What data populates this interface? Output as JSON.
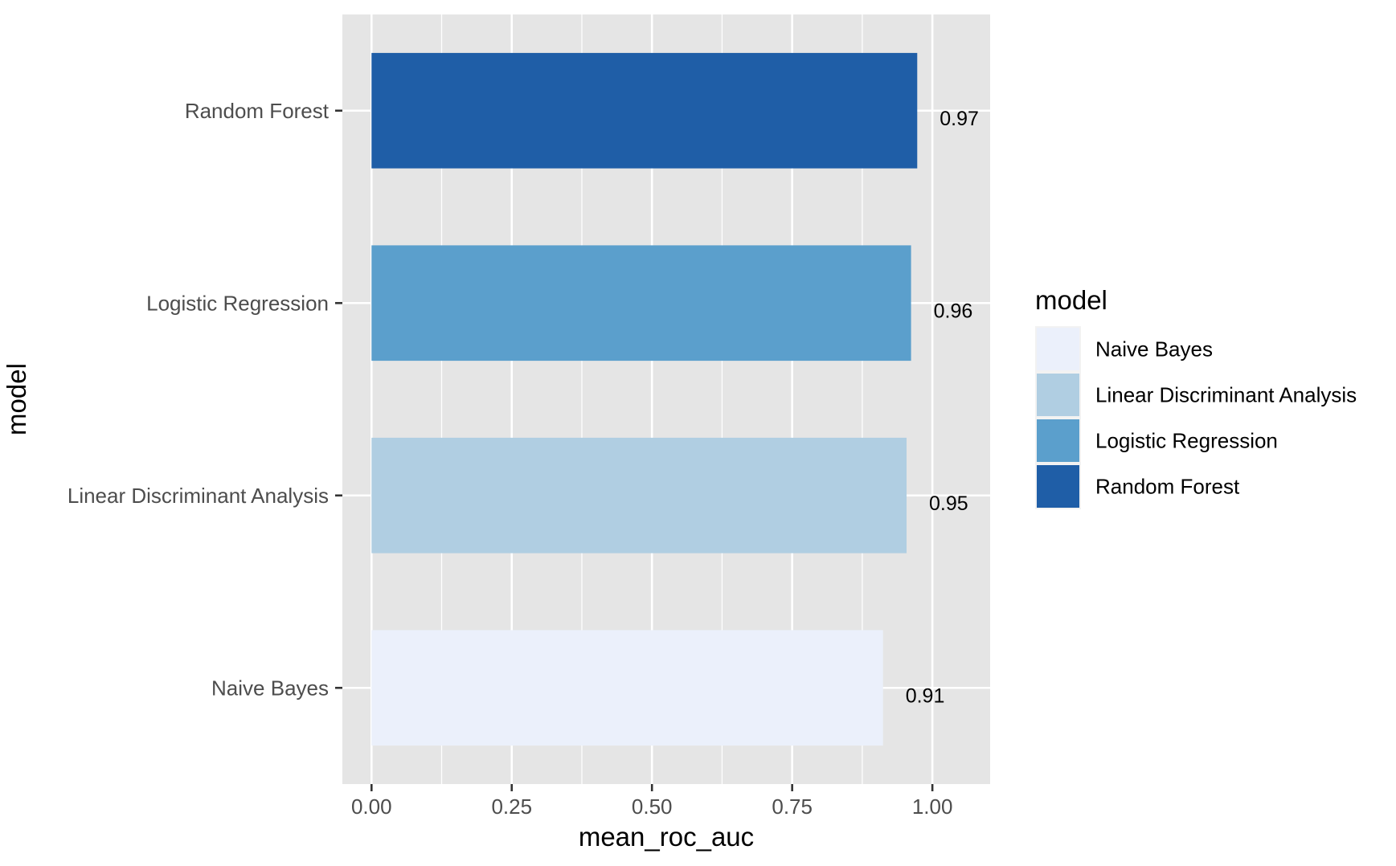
{
  "chart_data": {
    "type": "bar",
    "orientation": "horizontal",
    "categories": [
      "Naive Bayes",
      "Linear Discriminant Analysis",
      "Logistic Regression",
      "Random Forest"
    ],
    "values": [
      0.912,
      0.954,
      0.962,
      0.973
    ],
    "value_labels": [
      "0.91",
      "0.95",
      "0.96",
      "0.97"
    ],
    "colors": [
      "#EBF0FB",
      "#B0CEE2",
      "#5B9FCC",
      "#1F5EA7"
    ],
    "xlabel": "mean_roc_auc",
    "ylabel": "model",
    "xlim": [
      -0.052,
      1.103
    ],
    "x_ticks": [
      0,
      0.25,
      0.5,
      0.75,
      1
    ],
    "x_tick_labels": [
      "0.00",
      "0.25",
      "0.50",
      "0.75",
      "1.00"
    ],
    "grid": true,
    "legend": {
      "title": "model",
      "position": "right",
      "entries": [
        "Naive Bayes",
        "Linear Discriminant Analysis",
        "Logistic Regression",
        "Random Forest"
      ]
    },
    "panel_background": "#E5E5E5",
    "grid_color": "#FFFFFF"
  }
}
